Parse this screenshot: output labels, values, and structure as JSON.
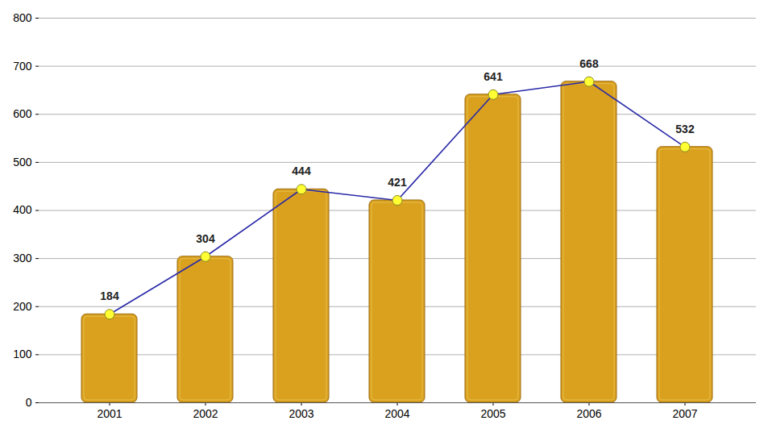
{
  "chart_data": {
    "type": "bar",
    "categories": [
      "2001",
      "2002",
      "2003",
      "2004",
      "2005",
      "2006",
      "2007"
    ],
    "values": [
      184,
      304,
      444,
      421,
      641,
      668,
      532
    ],
    "color": "#d9a11e",
    "ylim": [
      0,
      800
    ],
    "yticks": [
      0,
      100,
      200,
      300,
      400,
      500,
      600,
      700,
      800
    ],
    "grid": true,
    "data_labels": true,
    "line_style": "solid",
    "marker": "circle"
  }
}
